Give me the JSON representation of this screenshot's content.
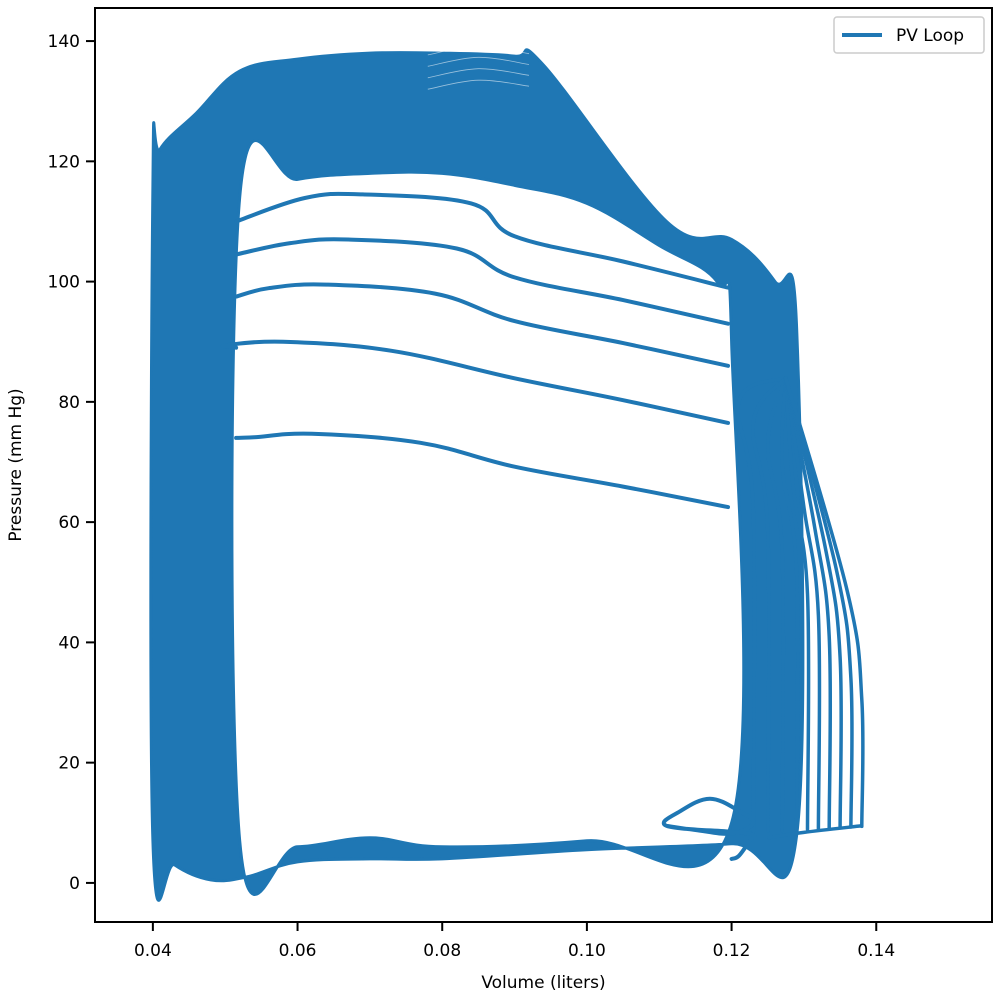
{
  "chart_data": {
    "type": "line",
    "title": "",
    "xlabel": "Volume (liters)",
    "ylabel": "Pressure (mm Hg)",
    "xlim": [
      0.032,
      0.156
    ],
    "ylim": [
      -6.5,
      145.5
    ],
    "xticks": [
      0.04,
      0.06,
      0.08,
      0.1,
      0.12,
      0.14
    ],
    "xtick_labels": [
      "0.04",
      "0.06",
      "0.08",
      "0.10",
      "0.12",
      "0.14"
    ],
    "yticks": [
      0,
      20,
      40,
      60,
      80,
      100,
      120,
      140
    ],
    "ytick_labels": [
      "0",
      "20",
      "40",
      "60",
      "80",
      "100",
      "120",
      "140"
    ],
    "grid": false,
    "legend": {
      "position": "top-right",
      "entries": [
        "PV Loop"
      ]
    },
    "series": [
      {
        "name": "PV Loop",
        "color": "#1f77b4",
        "description_curves": {
          "filled_band": {
            "outer": [
              [
                0.04,
                116
              ],
              [
                0.041,
                122
              ],
              [
                0.046,
                128
              ],
              [
                0.052,
                135
              ],
              [
                0.06,
                137
              ],
              [
                0.07,
                138
              ],
              [
                0.08,
                138
              ],
              [
                0.09,
                137.5
              ],
              [
                0.094,
                136
              ],
              [
                0.111,
                110
              ],
              [
                0.12,
                107
              ],
              [
                0.126,
                100
              ],
              [
                0.129,
                92
              ],
              [
                0.129,
                8
              ],
              [
                0.12,
                6.5
              ],
              [
                0.1,
                5.5
              ],
              [
                0.08,
                4
              ],
              [
                0.07,
                4
              ],
              [
                0.06,
                3.5
              ],
              [
                0.053,
                1
              ],
              [
                0.048,
                0.5
              ],
              [
                0.043,
                3
              ],
              [
                0.04,
                7
              ]
            ],
            "inner_top": [
              [
                0.052,
                114
              ],
              [
                0.06,
                117
              ],
              [
                0.07,
                118
              ],
              [
                0.08,
                118
              ],
              [
                0.09,
                116
              ],
              [
                0.1,
                113
              ],
              [
                0.11,
                106
              ],
              [
                0.118,
                100
              ],
              [
                0.12,
                90
              ],
              [
                0.12,
                10
              ],
              [
                0.1,
                7
              ],
              [
                0.08,
                6
              ],
              [
                0.07,
                7.5
              ],
              [
                0.06,
                6
              ],
              [
                0.052,
                7
              ]
            ]
          },
          "transient_loops": [
            {
              "p_start": 74,
              "p_peak": 74.7,
              "v_peak": 0.062,
              "p_end": 62.5
            },
            {
              "p_start": 89,
              "p_peak": 90,
              "v_peak": 0.058,
              "p_end": 76.5
            },
            {
              "p_start": 97.5,
              "p_peak": 99.5,
              "v_peak": 0.064,
              "p_end": 86
            },
            {
              "p_start": 104.5,
              "p_peak": 107,
              "v_peak": 0.067,
              "p_end": 93
            },
            {
              "p_start": 110,
              "p_peak": 114.5,
              "v_peak": 0.069,
              "p_end": 99
            }
          ],
          "filling_lines_v": [
            0.123,
            0.125,
            0.127,
            0.129,
            0.1305,
            0.132,
            0.1335,
            0.135,
            0.1365,
            0.138
          ],
          "small_loop": [
            [
              0.12,
              4
            ],
            [
              0.121,
              4.5
            ],
            [
              0.1225,
              7
            ],
            [
              0.123,
              8
            ],
            [
              0.12,
              8.5
            ],
            [
              0.111,
              9.5
            ],
            [
              0.113,
              12
            ],
            [
              0.117,
              14
            ],
            [
              0.121,
              12
            ],
            [
              0.123,
              10
            ],
            [
              0.12,
              8.2
            ],
            [
              0.115,
              8.8
            ],
            [
              0.111,
              9.5
            ]
          ]
        }
      }
    ]
  }
}
